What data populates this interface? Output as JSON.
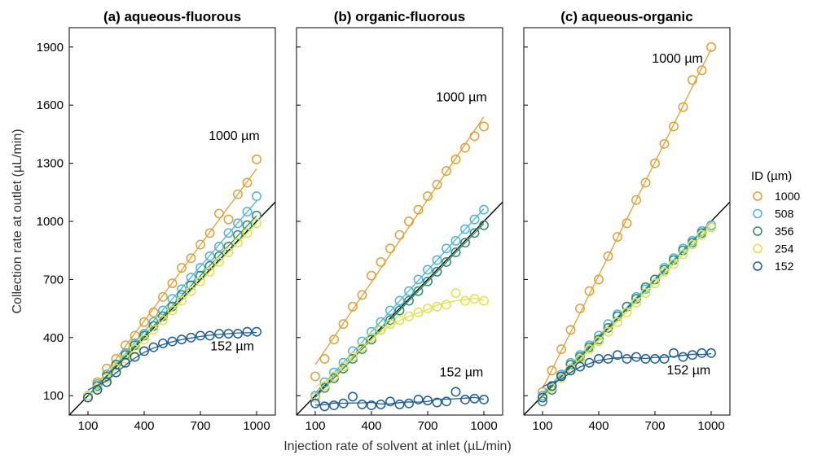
{
  "chart_data": {
    "type": "scatter",
    "xlabel": "Injection rate of solvent at inlet (µL/min)",
    "ylabel": "Collection rate at outlet (µL/min)",
    "x_ticks": [
      "100",
      "400",
      "700",
      "1000"
    ],
    "y_ticks": [
      "100",
      "400",
      "700",
      "1000",
      "1300",
      "1600",
      "1900"
    ],
    "xlim": [
      0,
      1100
    ],
    "ylim": [
      0,
      2000
    ],
    "reference_line": "y = x",
    "legend": {
      "title": "ID (µm)",
      "placement": "right",
      "entries": [
        {
          "label": "1000",
          "color": "#E69F2E"
        },
        {
          "label": "508",
          "color": "#4BB4DE"
        },
        {
          "label": "356",
          "color": "#2C8C64"
        },
        {
          "label": "254",
          "color": "#E3E14A"
        },
        {
          "label": "152",
          "color": "#1A5E9C"
        }
      ]
    },
    "panels": [
      {
        "title": "(a) aqueous-fluorous",
        "annotations": [
          {
            "text": "1000 µm",
            "x": 880,
            "y": 1420
          },
          {
            "text": "152 µm",
            "x": 870,
            "y": 335
          }
        ],
        "series": [
          {
            "name": "1000",
            "x": [
              100,
              150,
              200,
              250,
              300,
              350,
              400,
              450,
              500,
              550,
              600,
              650,
              700,
              750,
              800,
              850,
              900,
              950,
              1000
            ],
            "y": [
              100,
              170,
              240,
              290,
              360,
              410,
              480,
              530,
              610,
              680,
              760,
              810,
              880,
              940,
              1040,
              1010,
              1140,
              1200,
              1320
            ]
          },
          {
            "name": "508",
            "x": [
              100,
              150,
              200,
              250,
              300,
              350,
              400,
              450,
              500,
              550,
              600,
              650,
              700,
              750,
              800,
              850,
              900,
              950,
              1000
            ],
            "y": [
              100,
              160,
              210,
              260,
              320,
              370,
              420,
              480,
              540,
              600,
              650,
              710,
              760,
              820,
              870,
              940,
              990,
              1050,
              1130
            ]
          },
          {
            "name": "356",
            "x": [
              100,
              150,
              200,
              250,
              300,
              350,
              400,
              450,
              500,
              550,
              600,
              650,
              700,
              750,
              800,
              850,
              900,
              950,
              1000
            ],
            "y": [
              100,
              150,
              200,
              260,
              310,
              360,
              410,
              460,
              510,
              560,
              620,
              670,
              720,
              770,
              820,
              870,
              930,
              980,
              1030
            ]
          },
          {
            "name": "254",
            "x": [
              100,
              150,
              200,
              250,
              300,
              350,
              400,
              450,
              500,
              550,
              600,
              650,
              700,
              750,
              800,
              850,
              900,
              950,
              1000
            ],
            "y": [
              100,
              140,
              190,
              240,
              290,
              340,
              390,
              440,
              490,
              540,
              590,
              640,
              690,
              740,
              790,
              840,
              890,
              940,
              990
            ]
          },
          {
            "name": "152",
            "x": [
              100,
              150,
              200,
              250,
              300,
              350,
              400,
              450,
              500,
              550,
              600,
              650,
              700,
              750,
              800,
              850,
              900,
              950,
              1000
            ],
            "y": [
              90,
              130,
              170,
              220,
              270,
              300,
              330,
              350,
              370,
              380,
              390,
              400,
              410,
              410,
              420,
              420,
              420,
              430,
              430
            ]
          }
        ]
      },
      {
        "title": "(b) organic-fluorous",
        "annotations": [
          {
            "text": "1000 µm",
            "x": 880,
            "y": 1620
          },
          {
            "text": "152 µm",
            "x": 880,
            "y": 200
          }
        ],
        "series": [
          {
            "name": "1000",
            "x": [
              100,
              150,
              200,
              250,
              300,
              350,
              400,
              450,
              500,
              550,
              600,
              650,
              700,
              750,
              800,
              850,
              900,
              950,
              1000
            ],
            "y": [
              200,
              290,
              390,
              470,
              560,
              620,
              720,
              790,
              860,
              930,
              1000,
              1060,
              1130,
              1190,
              1260,
              1320,
              1380,
              1440,
              1490
            ]
          },
          {
            "name": "508",
            "x": [
              100,
              150,
              200,
              250,
              300,
              350,
              400,
              450,
              500,
              550,
              600,
              650,
              700,
              750,
              800,
              850,
              900,
              950,
              1000
            ],
            "y": [
              100,
              170,
              220,
              270,
              330,
              380,
              430,
              480,
              540,
              590,
              640,
              700,
              750,
              800,
              860,
              900,
              960,
              1010,
              1060
            ]
          },
          {
            "name": "356",
            "x": [
              100,
              150,
              200,
              250,
              300,
              350,
              400,
              450,
              500,
              550,
              600,
              650,
              700,
              750,
              800,
              850,
              900,
              950,
              1000
            ],
            "y": [
              90,
              140,
              190,
              240,
              290,
              340,
              390,
              440,
              490,
              540,
              590,
              640,
              690,
              740,
              790,
              840,
              890,
              940,
              980
            ]
          },
          {
            "name": "254",
            "x": [
              100,
              150,
              200,
              250,
              300,
              350,
              400,
              450,
              500,
              550,
              600,
              650,
              700,
              750,
              800,
              850,
              900,
              950,
              1000
            ],
            "y": [
              90,
              150,
              200,
              250,
              300,
              350,
              400,
              440,
              470,
              490,
              510,
              530,
              550,
              560,
              570,
              630,
              590,
              600,
              590
            ]
          },
          {
            "name": "152",
            "x": [
              100,
              150,
              200,
              250,
              300,
              350,
              400,
              450,
              500,
              550,
              600,
              650,
              700,
              750,
              800,
              850,
              900,
              950,
              1000
            ],
            "y": [
              60,
              45,
              50,
              60,
              95,
              55,
              50,
              55,
              70,
              55,
              60,
              80,
              75,
              65,
              70,
              120,
              80,
              85,
              80
            ]
          }
        ]
      },
      {
        "title": "(c) aqueous-organic",
        "annotations": [
          {
            "text": "1000 µm",
            "x": 820,
            "y": 1820
          },
          {
            "text": "152 µm",
            "x": 880,
            "y": 210
          }
        ],
        "series": [
          {
            "name": "1000",
            "x": [
              100,
              150,
              200,
              250,
              300,
              350,
              400,
              450,
              500,
              550,
              600,
              650,
              700,
              750,
              800,
              850,
              900,
              950,
              1000
            ],
            "y": [
              120,
              230,
              340,
              440,
              550,
              640,
              700,
              820,
              920,
              990,
              1110,
              1200,
              1300,
              1400,
              1490,
              1590,
              1730,
              1780,
              1900
            ]
          },
          {
            "name": "508",
            "x": [
              100,
              150,
              200,
              250,
              300,
              350,
              400,
              450,
              500,
              550,
              600,
              650,
              700,
              750,
              800,
              850,
              900,
              950,
              1000
            ],
            "y": [
              100,
              150,
              210,
              270,
              310,
              360,
              410,
              470,
              520,
              560,
              610,
              650,
              700,
              760,
              810,
              860,
              900,
              950,
              980
            ]
          },
          {
            "name": "356",
            "x": [
              100,
              150,
              200,
              250,
              300,
              350,
              400,
              450,
              500,
              550,
              600,
              650,
              700,
              750,
              800,
              850,
              900,
              950,
              1000
            ],
            "y": [
              70,
              130,
              200,
              260,
              300,
              350,
              390,
              450,
              510,
              560,
              600,
              660,
              700,
              750,
              800,
              850,
              890,
              940,
              970
            ]
          },
          {
            "name": "254",
            "x": [
              100,
              150,
              200,
              250,
              300,
              350,
              400,
              450,
              500,
              550,
              600,
              650,
              700,
              750,
              800,
              850,
              900,
              950,
              1000
            ],
            "y": [
              90,
              140,
              190,
              240,
              290,
              340,
              380,
              430,
              480,
              530,
              580,
              630,
              680,
              740,
              780,
              830,
              880,
              930,
              970
            ]
          },
          {
            "name": "152",
            "x": [
              100,
              150,
              200,
              250,
              300,
              350,
              400,
              450,
              500,
              550,
              600,
              650,
              700,
              750,
              800,
              850,
              900,
              950,
              1000
            ],
            "y": [
              90,
              150,
              200,
              230,
              250,
              270,
              290,
              290,
              310,
              290,
              300,
              290,
              290,
              290,
              320,
              300,
              310,
              320,
              320
            ]
          }
        ]
      }
    ]
  }
}
